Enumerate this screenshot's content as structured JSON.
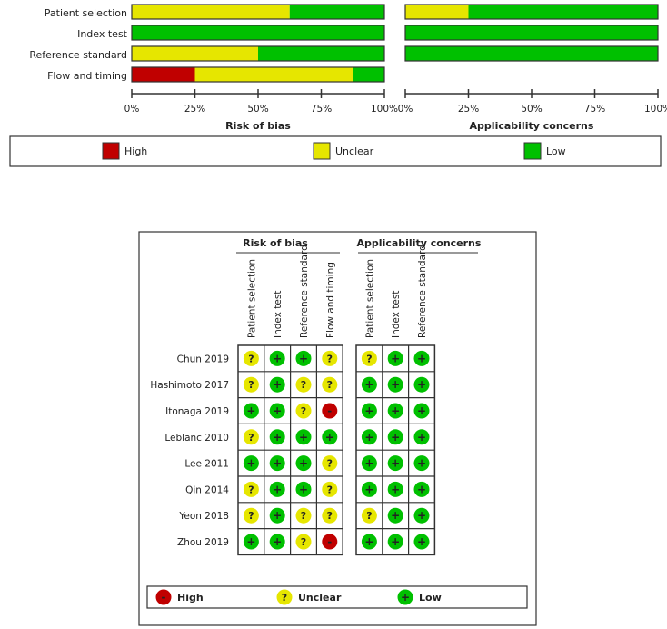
{
  "colors": {
    "High": "#c00000",
    "Unclear": "#e6e600",
    "Low": "#00c000"
  },
  "chart_data": [
    {
      "type": "bar",
      "stacked": true,
      "orientation": "horizontal",
      "title": "Risk of bias",
      "categories": [
        "Patient selection",
        "Index test",
        "Reference standard",
        "Flow and timing"
      ],
      "series": [
        {
          "name": "High",
          "values": [
            0,
            0,
            0,
            25
          ]
        },
        {
          "name": "Unclear",
          "values": [
            62.5,
            0,
            50,
            62.5
          ]
        },
        {
          "name": "Low",
          "values": [
            37.5,
            100,
            50,
            12.5
          ]
        }
      ],
      "xlim": [
        0,
        100
      ],
      "xticks": [
        "0%",
        "25%",
        "50%",
        "75%",
        "100%"
      ]
    },
    {
      "type": "bar",
      "stacked": true,
      "orientation": "horizontal",
      "title": "Applicability concerns",
      "categories": [
        "Patient selection",
        "Index test",
        "Reference standard"
      ],
      "series": [
        {
          "name": "High",
          "values": [
            0,
            0,
            0
          ]
        },
        {
          "name": "Unclear",
          "values": [
            25,
            0,
            0
          ]
        },
        {
          "name": "Low",
          "values": [
            75,
            100,
            100
          ]
        }
      ],
      "xlim": [
        0,
        100
      ],
      "xticks": [
        "0%",
        "25%",
        "50%",
        "75%",
        "100%"
      ]
    },
    {
      "type": "table",
      "title_rob": "Risk of bias",
      "title_app": "Applicability concerns",
      "rob_columns": [
        "Patient selection",
        "Index test",
        "Reference standard",
        "Flow and timing"
      ],
      "app_columns": [
        "Patient selection",
        "Index test",
        "Reference standard"
      ],
      "studies": [
        {
          "name": "Chun 2019",
          "rob": [
            "?",
            "+",
            "+",
            "?"
          ],
          "app": [
            "?",
            "+",
            "+"
          ]
        },
        {
          "name": "Hashimoto 2017",
          "rob": [
            "?",
            "+",
            "?",
            "?"
          ],
          "app": [
            "+",
            "+",
            "+"
          ]
        },
        {
          "name": "Itonaga 2019",
          "rob": [
            "+",
            "+",
            "?",
            "-"
          ],
          "app": [
            "+",
            "+",
            "+"
          ]
        },
        {
          "name": "Leblanc 2010",
          "rob": [
            "?",
            "+",
            "+",
            "+"
          ],
          "app": [
            "+",
            "+",
            "+"
          ]
        },
        {
          "name": "Lee 2011",
          "rob": [
            "+",
            "+",
            "+",
            "?"
          ],
          "app": [
            "+",
            "+",
            "+"
          ]
        },
        {
          "name": "Qin 2014",
          "rob": [
            "?",
            "+",
            "+",
            "?"
          ],
          "app": [
            "+",
            "+",
            "+"
          ]
        },
        {
          "name": "Yeon 2018",
          "rob": [
            "?",
            "+",
            "?",
            "?"
          ],
          "app": [
            "?",
            "+",
            "+"
          ]
        },
        {
          "name": "Zhou 2019",
          "rob": [
            "+",
            "+",
            "?",
            "-"
          ],
          "app": [
            "+",
            "+",
            "+"
          ]
        }
      ]
    }
  ],
  "legend": [
    {
      "key": "High",
      "label": "High",
      "symbol": "-"
    },
    {
      "key": "Unclear",
      "label": "Unclear",
      "symbol": "?"
    },
    {
      "key": "Low",
      "label": "Low",
      "symbol": "+"
    }
  ]
}
